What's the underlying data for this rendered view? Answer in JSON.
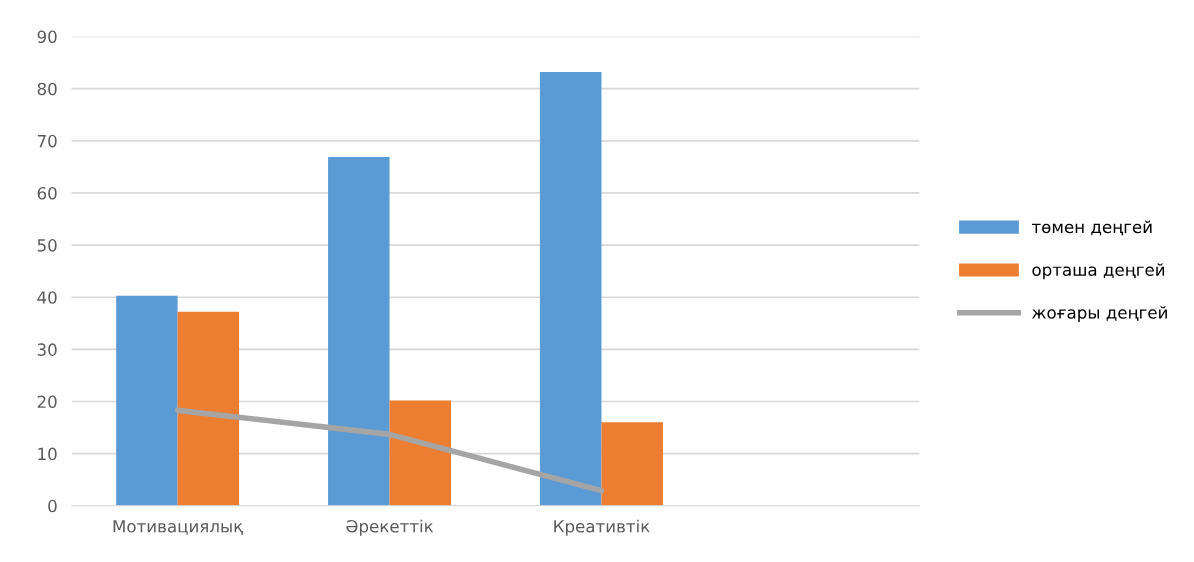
{
  "chart_data": {
    "type": "bar",
    "categories": [
      "Мотивациялық",
      "Әрекеттік",
      "Креативтік",
      null
    ],
    "series": [
      {
        "name": "төмен деңгей",
        "color": "#5b9bd5",
        "values": [
          40.3,
          66.9,
          83.2,
          null
        ]
      },
      {
        "name": "орташа деңгей",
        "color": "#ed7d31",
        "values": [
          37.2,
          20.2,
          16.0,
          null
        ]
      },
      {
        "name": "жоғары деңгей",
        "color": "#a5a5a5",
        "type": "line",
        "values": [
          18.3,
          13.7,
          2.9,
          null
        ]
      }
    ],
    "ylim": [
      0,
      90
    ],
    "yticks": [
      0,
      10,
      20,
      30,
      40,
      50,
      60,
      70,
      80,
      90
    ],
    "grid": "y",
    "legend": "right",
    "marker": "none"
  }
}
